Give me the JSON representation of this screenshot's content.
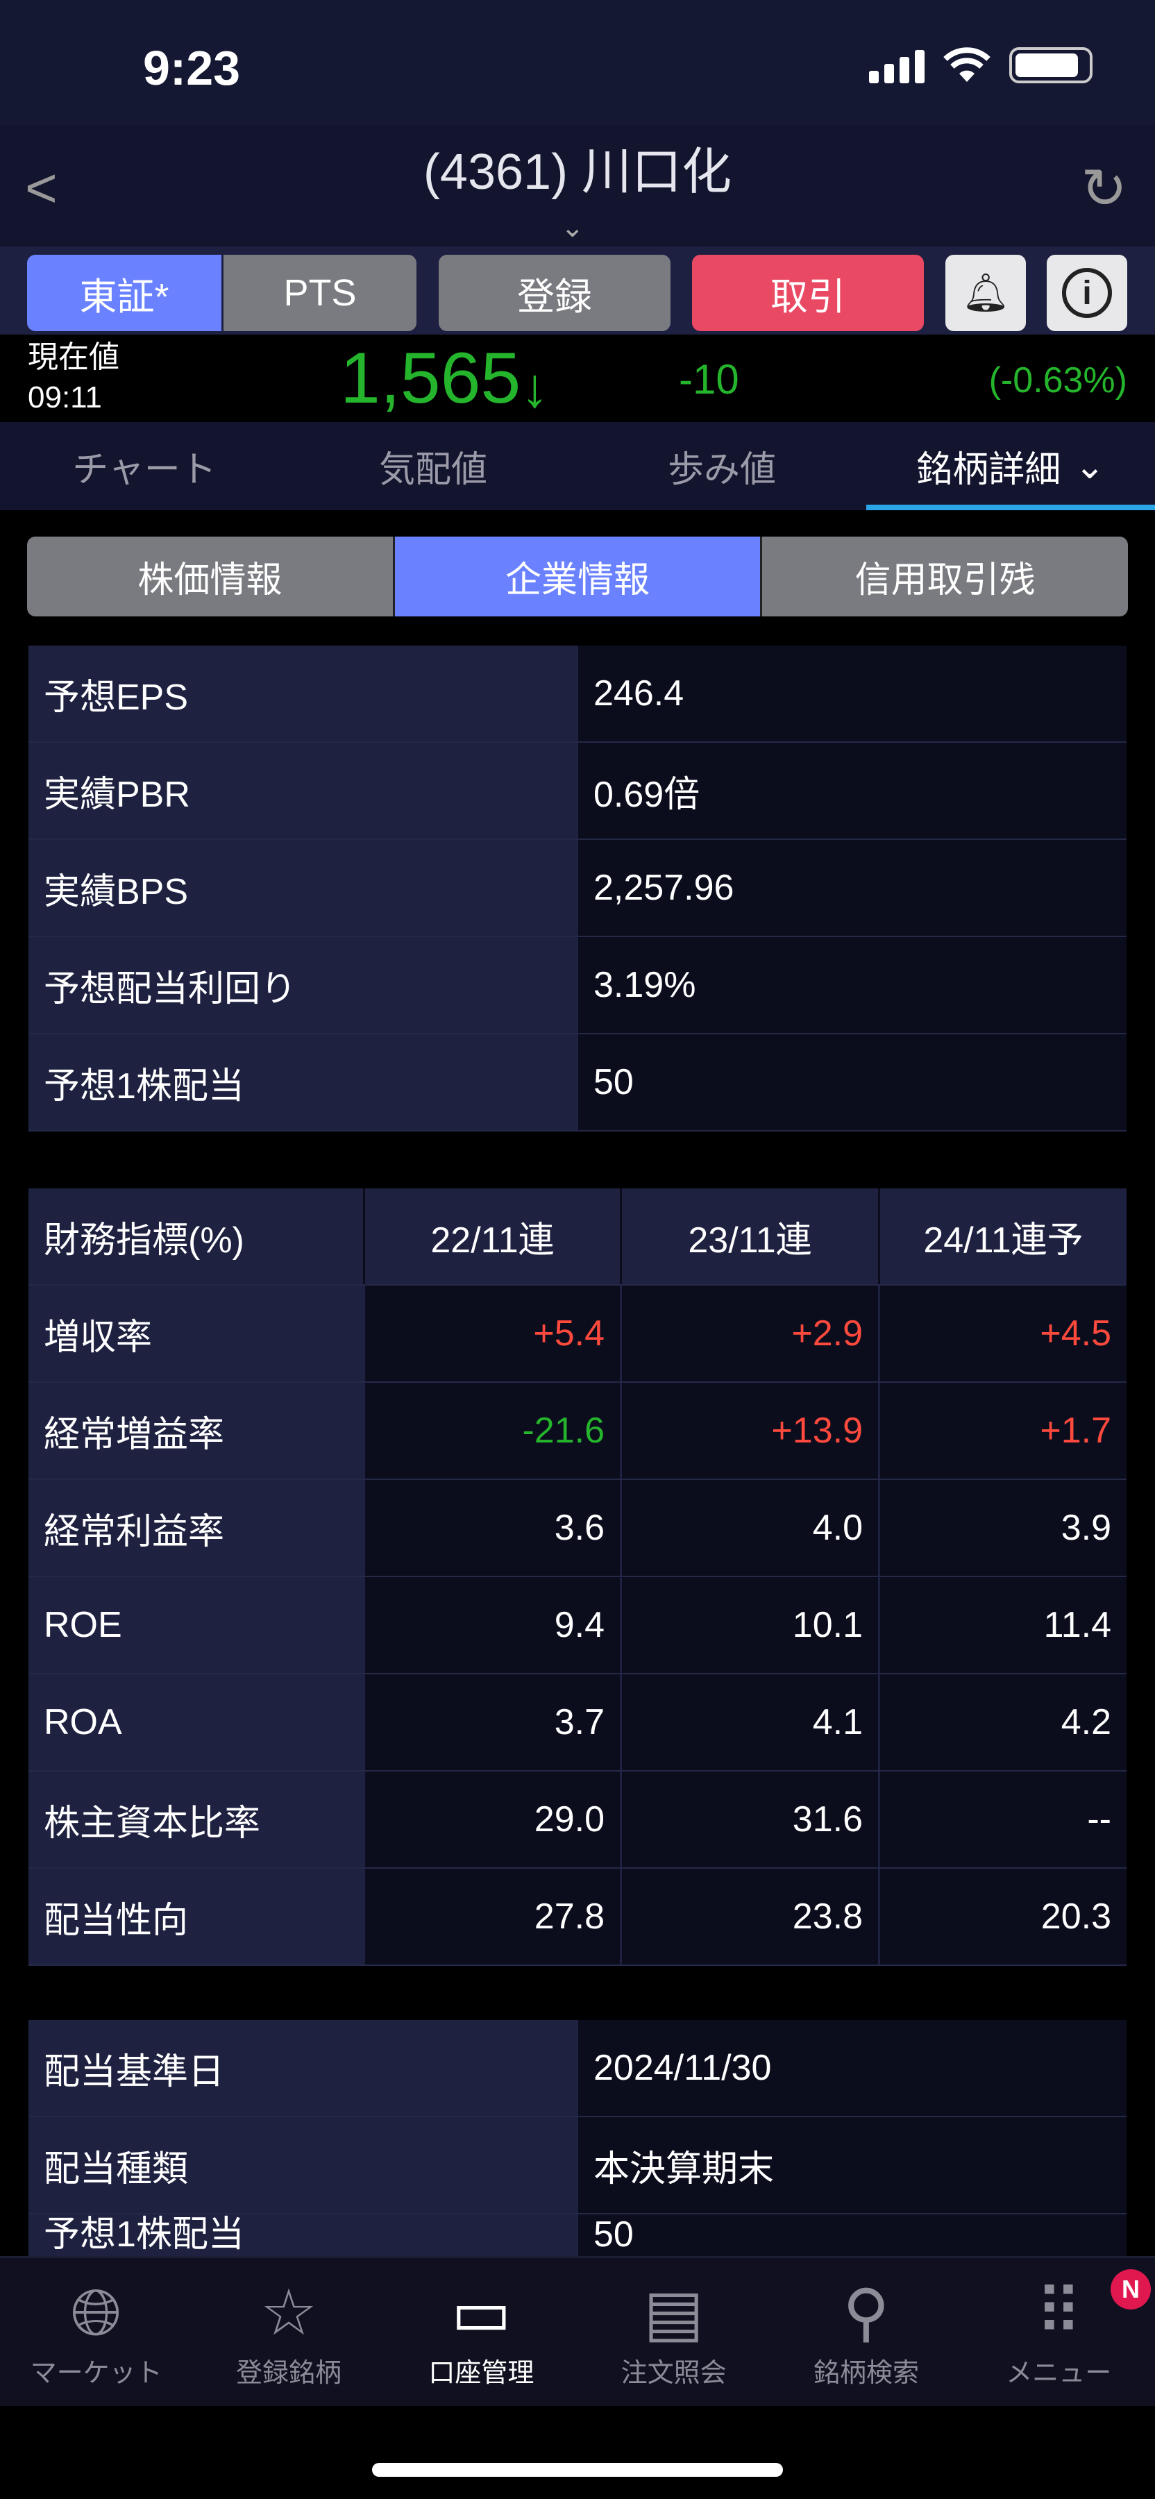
{
  "status_bar": {
    "time": "9:23"
  },
  "header": {
    "title": "(4361) 川口化"
  },
  "actions": {
    "market_tse": "東証*",
    "market_pts": "PTS",
    "register": "登録",
    "trade": "取引"
  },
  "quote": {
    "label": "現在値",
    "time": "09:11",
    "price": "1,565",
    "arrow": "↓",
    "change": "-10",
    "change_pct": "(-0.63%)",
    "down_color": "#25b52c"
  },
  "tabs": [
    {
      "label": "チャート"
    },
    {
      "label": "気配値"
    },
    {
      "label": "歩み値"
    },
    {
      "label": "銘柄詳細"
    }
  ],
  "subtabs": [
    {
      "label": "株価情報"
    },
    {
      "label": "企業情報"
    },
    {
      "label": "信用取引残"
    }
  ],
  "summary": [
    {
      "label": "予想EPS",
      "value": "246.4"
    },
    {
      "label": "実績PBR",
      "value": "0.69倍"
    },
    {
      "label": "実績BPS",
      "value": "2,257.96"
    },
    {
      "label": "予想配当利回り",
      "value": "3.19%"
    },
    {
      "label": "予想1株配当",
      "value": "50"
    }
  ],
  "financials": {
    "headers": [
      "財務指標(%)",
      "22/11連",
      "23/11連",
      "24/11連予"
    ],
    "rows": [
      {
        "label": "増収率",
        "values": [
          "+5.4",
          "+2.9",
          "+4.5"
        ],
        "tones": [
          "up",
          "up",
          "up"
        ]
      },
      {
        "label": "経常増益率",
        "values": [
          "-21.6",
          "+13.9",
          "+1.7"
        ],
        "tones": [
          "dn",
          "up",
          "up"
        ]
      },
      {
        "label": "経常利益率",
        "values": [
          "3.6",
          "4.0",
          "3.9"
        ],
        "tones": [
          "",
          "",
          ""
        ]
      },
      {
        "label": "ROE",
        "values": [
          "9.4",
          "10.1",
          "11.4"
        ],
        "tones": [
          "",
          "",
          ""
        ]
      },
      {
        "label": "ROA",
        "values": [
          "3.7",
          "4.1",
          "4.2"
        ],
        "tones": [
          "",
          "",
          ""
        ]
      },
      {
        "label": "株主資本比率",
        "values": [
          "29.0",
          "31.6",
          "--"
        ],
        "tones": [
          "",
          "",
          ""
        ]
      },
      {
        "label": "配当性向",
        "values": [
          "27.8",
          "23.8",
          "20.3"
        ],
        "tones": [
          "",
          "",
          ""
        ]
      }
    ]
  },
  "dividend": [
    {
      "label": "配当基準日",
      "value": "2024/11/30"
    },
    {
      "label": "配当種類",
      "value": "本決算期末"
    },
    {
      "label": "予想1株配当",
      "value": "50"
    }
  ],
  "bottom_nav": [
    {
      "label": "マーケット",
      "icon": "globe-icon"
    },
    {
      "label": "登録銘柄",
      "icon": "star-icon"
    },
    {
      "label": "口座管理",
      "icon": "card-icon"
    },
    {
      "label": "注文照会",
      "icon": "document-icon"
    },
    {
      "label": "銘柄検索",
      "icon": "search-icon"
    },
    {
      "label": "メニュー",
      "icon": "grid-icon",
      "badge": "N"
    }
  ]
}
